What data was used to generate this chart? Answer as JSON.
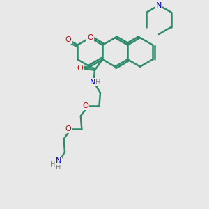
{
  "background_color": "#e8e8e8",
  "bond_color": "#2d8a6b",
  "oxygen_color": "#cc0000",
  "nitrogen_color": "#0000cc",
  "hydrogen_color": "#808080",
  "line_width": 1.8,
  "figsize": [
    3.0,
    3.0
  ],
  "dpi": 100,
  "xlim": [
    0,
    10
  ],
  "ylim": [
    0,
    10
  ]
}
